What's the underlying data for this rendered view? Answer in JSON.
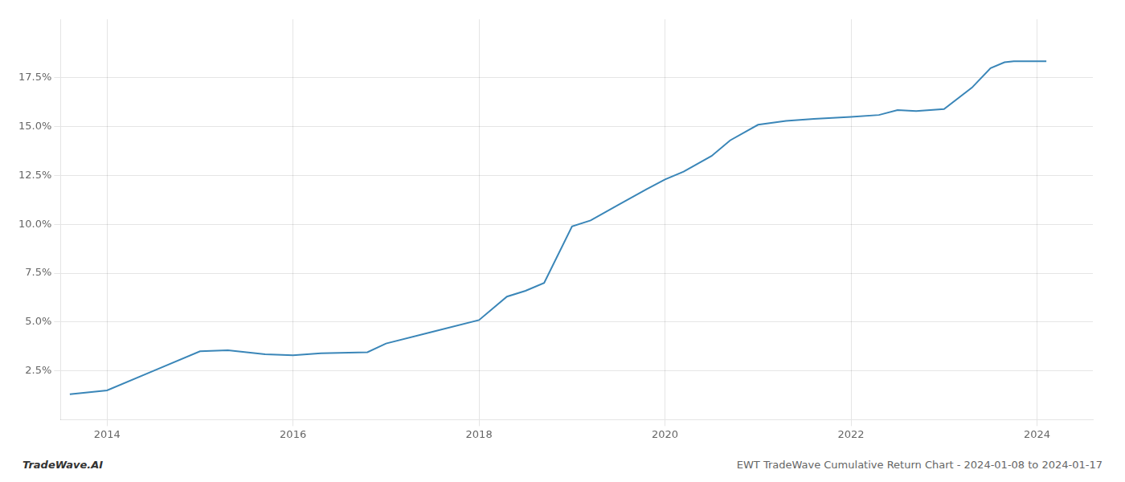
{
  "chart_data": {
    "type": "line",
    "title": "EWT TradeWave Cumulative Return Chart - 2024-01-08 to 2024-01-17",
    "annotations": [
      "TradeWave.AI"
    ],
    "color": "#3a86b8",
    "grid": true,
    "x": [
      2013.6,
      2014.0,
      2014.5,
      2015.0,
      2015.3,
      2015.7,
      2016.0,
      2016.3,
      2016.8,
      2017.0,
      2017.5,
      2018.0,
      2018.3,
      2018.5,
      2018.7,
      2019.0,
      2019.2,
      2019.5,
      2019.8,
      2020.0,
      2020.2,
      2020.5,
      2020.7,
      2021.0,
      2021.3,
      2021.6,
      2022.0,
      2022.3,
      2022.5,
      2022.7,
      2023.0,
      2023.3,
      2023.5,
      2023.65,
      2023.75,
      2024.0,
      2024.1
    ],
    "values": [
      1.3,
      1.5,
      2.5,
      3.5,
      3.55,
      3.35,
      3.3,
      3.4,
      3.45,
      3.9,
      4.5,
      5.1,
      6.3,
      6.6,
      7.0,
      9.9,
      10.2,
      11.0,
      11.8,
      12.3,
      12.7,
      13.5,
      14.3,
      15.1,
      15.3,
      15.4,
      15.5,
      15.6,
      15.85,
      15.8,
      15.9,
      17.0,
      18.0,
      18.3,
      18.35,
      18.35,
      18.35
    ],
    "xlim": [
      2013.5,
      2024.6
    ],
    "xticks": [
      2014,
      2016,
      2018,
      2020,
      2022,
      2024
    ],
    "ylim": [
      0.0,
      20.5
    ],
    "yticks": [
      {
        "value": 2.5,
        "label": "2.5%"
      },
      {
        "value": 5.0,
        "label": "5.0%"
      },
      {
        "value": 7.5,
        "label": "7.5%"
      },
      {
        "value": 10.0,
        "label": "10.0%"
      },
      {
        "value": 12.5,
        "label": "12.5%"
      },
      {
        "value": 15.0,
        "label": "15.0%"
      },
      {
        "value": 17.5,
        "label": "17.5%"
      }
    ]
  }
}
